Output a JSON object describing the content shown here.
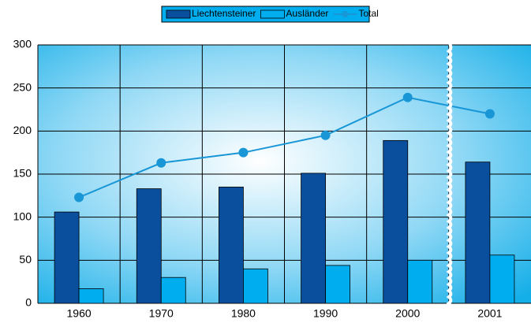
{
  "chart_data": {
    "type": "bar",
    "categories": [
      "1960",
      "1970",
      "1980",
      "1990",
      "2000",
      "2001"
    ],
    "series": [
      {
        "name": "Liechtensteiner",
        "color": "#0a4f9e",
        "values": [
          106,
          133,
          135,
          151,
          189,
          164
        ]
      },
      {
        "name": "Ausländer",
        "color": "#00aeef",
        "values": [
          17,
          30,
          40,
          44,
          50,
          56
        ]
      },
      {
        "name": "Total",
        "type": "line",
        "color": "#1896d6",
        "values": [
          123,
          163,
          175,
          195,
          239,
          220
        ]
      }
    ],
    "ylim": [
      0,
      300
    ],
    "yticks": [
      0,
      50,
      100,
      150,
      200,
      250,
      300
    ],
    "grid": true,
    "legend": "top"
  }
}
